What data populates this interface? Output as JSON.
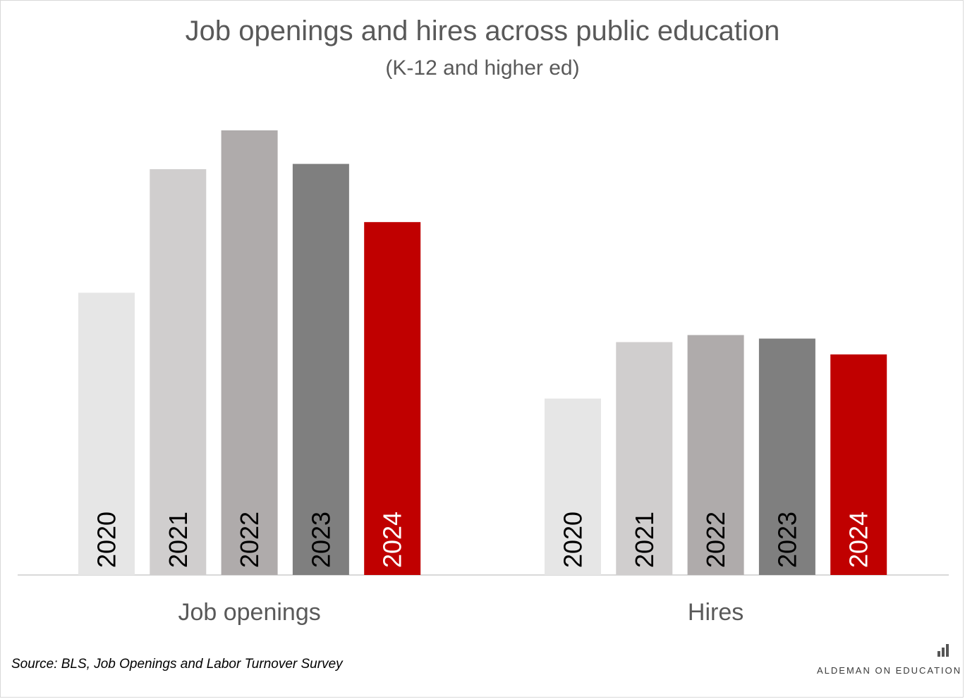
{
  "chart_data": {
    "type": "bar",
    "title": "Job openings and hires across public education",
    "subtitle": "(K-12 and higher ed)",
    "categories": [
      "Job openings",
      "Hires"
    ],
    "series": [
      {
        "name": "2020",
        "values": [
          1.6,
          1.0
        ],
        "color": "#e6e6e6",
        "label_color": "#000000"
      },
      {
        "name": "2021",
        "values": [
          2.3,
          1.32
        ],
        "color": "#d0cece",
        "label_color": "#000000"
      },
      {
        "name": "2022",
        "values": [
          2.52,
          1.36
        ],
        "color": "#afabab",
        "label_color": "#000000"
      },
      {
        "name": "2023",
        "values": [
          2.33,
          1.34
        ],
        "color": "#7f7f7f",
        "label_color": "#000000"
      },
      {
        "name": "2024",
        "values": [
          2.0,
          1.25
        ],
        "color": "#c00000",
        "label_color": "#ffffff"
      }
    ],
    "ylim": [
      0,
      2.52
    ],
    "legend": "none",
    "grid": false,
    "axes": {
      "y_visible": false
    }
  },
  "source": "Source: BLS, Job Openings and Labor Turnover Survey",
  "brand": {
    "text": "ALDEMAN ON EDUCATION",
    "icon": "bar-chart-icon"
  }
}
